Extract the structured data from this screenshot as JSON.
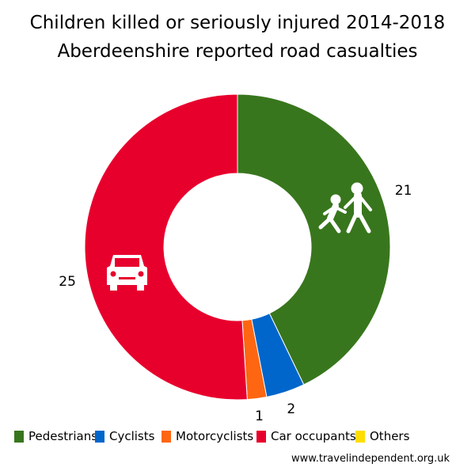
{
  "chart_data": {
    "type": "pie",
    "subtype": "donut",
    "title": "Children killed or seriously injured 2014-2018",
    "subtitle": "Aberdeenshire reported road casualties",
    "categories": [
      "Pedestrians",
      "Cyclists",
      "Motorcyclists",
      "Car occupants",
      "Others"
    ],
    "values": [
      21,
      2,
      1,
      25,
      0
    ],
    "colors": [
      "#38761d",
      "#0066cc",
      "#ff6611",
      "#e8002d",
      "#ffdd00"
    ],
    "data_labels": [
      "21",
      "2",
      "1",
      "25",
      ""
    ],
    "legend_position": "bottom",
    "start_angle_deg": 0,
    "direction": "clockwise"
  },
  "footer": {
    "url": "www.travelindependent.org.uk"
  }
}
